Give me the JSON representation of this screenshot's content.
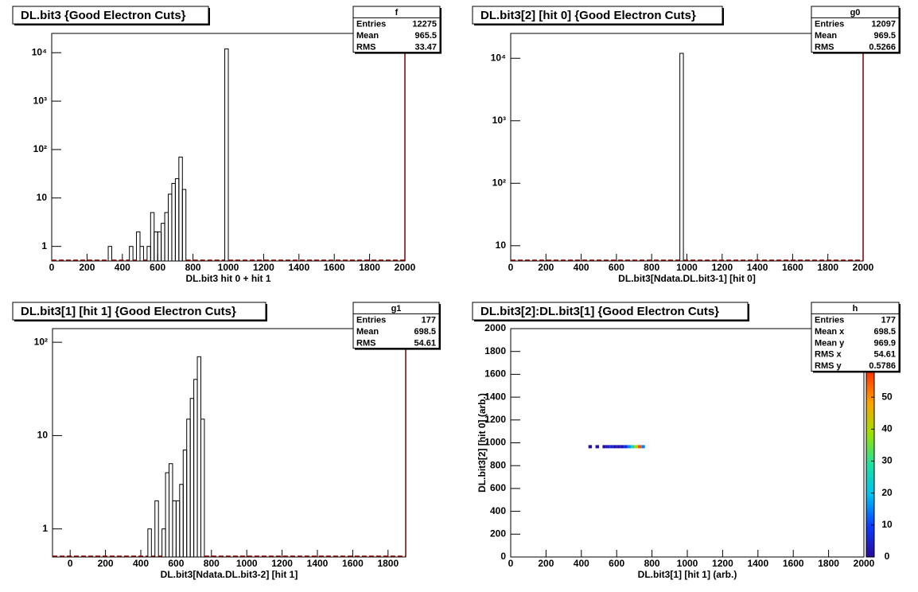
{
  "chart_data": [
    {
      "type": "histogram",
      "title": "DL.bit3 {Good Electron Cuts}",
      "xlabel": "DL.bit3 hit 0 + hit 1",
      "xlim": [
        0,
        2000
      ],
      "xticks": [
        0,
        200,
        400,
        600,
        800,
        1000,
        1200,
        1400,
        1600,
        1800,
        2000
      ],
      "log_y": true,
      "ylim": [
        0.5,
        25000
      ],
      "yticks": [
        1,
        10,
        {
          "value": 100,
          "label": "10²"
        },
        {
          "value": 1000,
          "label": "10³"
        },
        {
          "value": 10000,
          "label": "10⁴"
        }
      ],
      "color": "#000000",
      "bins": [
        0,
        320,
        340,
        440,
        460,
        480,
        500,
        520,
        540,
        560,
        580,
        600,
        620,
        640,
        660,
        680,
        700,
        720,
        740,
        760,
        980,
        1000,
        2000
      ],
      "values": [
        0,
        1,
        0,
        1,
        0,
        2,
        1,
        0,
        1,
        5,
        2,
        2,
        3,
        5,
        12,
        20,
        25,
        70,
        15,
        0,
        12000,
        0
      ],
      "stats": {
        "name": "f",
        "labels": [
          "Entries",
          "Mean",
          "RMS"
        ],
        "values": [
          12275,
          965.5,
          33.47
        ]
      }
    },
    {
      "type": "histogram",
      "title": "DL.bit3[2] [hit 0] {Good Electron Cuts}",
      "xlabel": "DL.bit3[Ndata.DL.bit3-1] [hit 0]",
      "xlim": [
        0,
        2000
      ],
      "xticks": [
        0,
        200,
        400,
        600,
        800,
        1000,
        1200,
        1400,
        1600,
        1800,
        2000
      ],
      "log_y": true,
      "ylim": [
        5.7,
        25000
      ],
      "yticks": [
        10,
        {
          "value": 100,
          "label": "10²"
        },
        {
          "value": 1000,
          "label": "10³"
        },
        {
          "value": 10000,
          "label": "10⁴"
        }
      ],
      "color": "#000000",
      "bins": [
        0,
        960,
        980,
        2000
      ],
      "values": [
        0,
        12000,
        0
      ],
      "stats": {
        "name": "g0",
        "labels": [
          "Entries",
          "Mean",
          "RMS"
        ],
        "values": [
          12097,
          969.5,
          0.5266
        ]
      }
    },
    {
      "type": "histogram",
      "title": "DL.bit3[1] [hit 1] {Good Electron Cuts}",
      "xlabel": "DL.bit3[Ndata.DL.bit3-2] [hit 1]",
      "xlim": [
        -100,
        1900
      ],
      "xticks": [
        0,
        200,
        400,
        600,
        800,
        1000,
        1200,
        1400,
        1600,
        1800
      ],
      "log_y": true,
      "ylim": [
        0.5,
        140
      ],
      "yticks": [
        1,
        10,
        {
          "value": 100,
          "label": "10²"
        }
      ],
      "color": "#000000",
      "bins": [
        -100,
        440,
        460,
        480,
        500,
        520,
        540,
        560,
        580,
        600,
        620,
        640,
        660,
        680,
        700,
        720,
        740,
        760,
        1900
      ],
      "values": [
        0,
        1,
        0,
        2,
        0,
        1,
        4,
        5,
        2,
        2,
        3,
        7,
        15,
        25,
        40,
        70,
        15,
        0
      ],
      "stats": {
        "name": "g1",
        "labels": [
          "Entries",
          "Mean",
          "RMS"
        ],
        "values": [
          177,
          698.5,
          54.61
        ]
      }
    },
    {
      "type": "heatmap",
      "title": "DL.bit3[2]:DL.bit3[1] {Good Electron Cuts}",
      "xlabel": "DL.bit3[1] [hit 1] (arb.)",
      "ylabel": "DL.bit3[2] [hit 0] (arb.)",
      "xlim": [
        0,
        2000
      ],
      "xticks": [
        0,
        200,
        400,
        600,
        800,
        1000,
        1200,
        1400,
        1600,
        1800,
        2000
      ],
      "ylim": [
        0,
        2000
      ],
      "yticks": [
        0,
        200,
        400,
        600,
        800,
        1000,
        1200,
        1400,
        1600,
        1800,
        2000
      ],
      "xbins": [
        440,
        460,
        480,
        500,
        520,
        540,
        560,
        580,
        600,
        620,
        640,
        660,
        680,
        700,
        720,
        740,
        760
      ],
      "ybins": [
        960,
        980
      ],
      "values": [
        1,
        0,
        2,
        0,
        1,
        4,
        5,
        2,
        2,
        3,
        7,
        15,
        25,
        40,
        55,
        15
      ],
      "zlim": [
        0,
        58
      ],
      "zticks": [
        0,
        10,
        20,
        30,
        40,
        50
      ],
      "palette": [
        "#2a0a9a",
        "#0a3cff",
        "#00c0f0",
        "#20e0a0",
        "#9ee000",
        "#ffa000",
        "#ff3000"
      ],
      "stats": {
        "name": "h",
        "labels": [
          "Entries",
          "Mean x",
          "Mean y",
          "RMS x",
          "RMS y"
        ],
        "values": [
          177,
          698.5,
          969.9,
          54.61,
          0.5786
        ]
      }
    }
  ]
}
